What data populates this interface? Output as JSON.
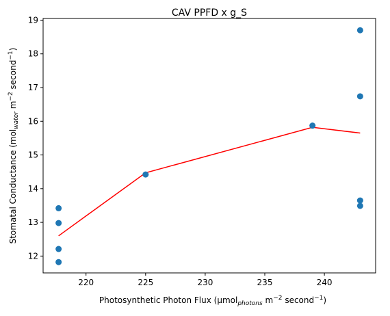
{
  "chart_data": {
    "type": "scatter",
    "title": "CAV PPFD x g_S",
    "xlabel": {
      "pre": "Photosynthetic Photon Flux (µmol",
      "sub": "photons",
      "mid": " m",
      "sup1": "−2",
      "post": " second",
      "sup2": "−1",
      "end": ")"
    },
    "ylabel": {
      "pre": "Stomatal Conductance (mol",
      "sub": "water",
      "mid": " m",
      "sup1": "−2",
      "post": " second",
      "sup2": "−1",
      "end": ")"
    },
    "xlim": [
      216.4,
      244.3
    ],
    "ylim": [
      11.5,
      19.05
    ],
    "xticks": [
      220,
      225,
      230,
      235,
      240
    ],
    "xtick_labels": [
      "220",
      "225",
      "230",
      "235",
      "240"
    ],
    "yticks": [
      12,
      13,
      14,
      15,
      16,
      17,
      18,
      19
    ],
    "ytick_labels": [
      "12",
      "13",
      "14",
      "15",
      "16",
      "17",
      "18",
      "19"
    ],
    "grid": false,
    "series": [
      {
        "kind": "scatter",
        "color": "#1f77b4",
        "x": [
          217.7,
          217.7,
          217.7,
          217.7,
          225.0,
          239.0,
          243.0,
          243.0,
          243.0,
          243.0
        ],
        "y": [
          13.42,
          12.98,
          12.21,
          11.82,
          14.42,
          15.87,
          18.7,
          16.74,
          13.65,
          13.49
        ]
      },
      {
        "kind": "line",
        "color": "#ff0000",
        "x": [
          217.7,
          225.0,
          239.0,
          243.0
        ],
        "y": [
          12.6,
          14.47,
          15.82,
          15.65
        ]
      }
    ]
  }
}
